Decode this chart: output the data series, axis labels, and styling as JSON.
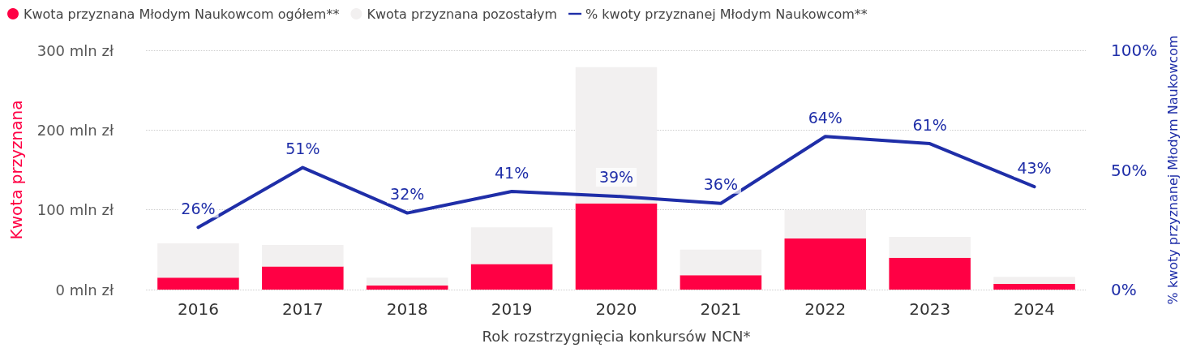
{
  "chart_data": {
    "type": "bar",
    "stacked": true,
    "xlabel": "Rok rozstrzygnięcia konkursów NCN*",
    "ylabel": "Kwota przyznana",
    "y2label": "% kwoty przyznanej Młodym Naukowcom",
    "categories": [
      "2016",
      "2017",
      "2018",
      "2019",
      "2020",
      "2021",
      "2022",
      "2023",
      "2024"
    ],
    "series": [
      {
        "name": "Kwota przyznana Młodym Naukowcom ogółem**",
        "color": "#ff0044",
        "values": [
          15,
          29,
          5,
          32,
          108,
          18,
          64,
          40,
          7
        ]
      },
      {
        "name": "Kwota przyznana pozostałym",
        "color": "#f2f0f0",
        "values": [
          43,
          27,
          10,
          46,
          171,
          32,
          36,
          26,
          9
        ]
      },
      {
        "name": "% kwoty przyznanej Młodym Naukowcom**",
        "type": "line",
        "axis": "y2",
        "color": "#1f2ea8",
        "values": [
          26,
          51,
          32,
          41,
          39,
          36,
          64,
          61,
          43
        ],
        "value_labels": [
          "26%",
          "51%",
          "32%",
          "41%",
          "39%",
          "36%",
          "64%",
          "61%",
          "43%"
        ]
      }
    ],
    "ylim": [
      0,
      300
    ],
    "yticks": [
      {
        "value": 0,
        "label": "0 mln zł"
      },
      {
        "value": 100,
        "label": "100 mln zł"
      },
      {
        "value": 200,
        "label": "200 mln zł"
      },
      {
        "value": 300,
        "label": "300 mln zł"
      }
    ],
    "y2lim": [
      0,
      100
    ],
    "y2ticks": [
      {
        "value": 0,
        "label": "0%"
      },
      {
        "value": 50,
        "label": "50%"
      },
      {
        "value": 100,
        "label": "100%"
      }
    ],
    "grid": "y",
    "legend": "top left",
    "marker": "none",
    "line_style": "solid"
  }
}
